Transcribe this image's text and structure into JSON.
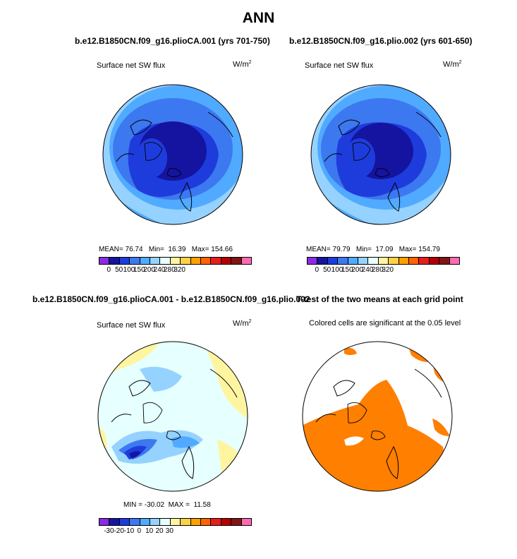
{
  "title": "ANN",
  "panels": [
    {
      "title": "b.e12.B1850CN.f09_g16.plioCA.001 (yrs 701-750)",
      "left_label": "Surface net SW flux",
      "units": "W/m",
      "units_exp": "2",
      "stats": {
        "mean_label": "MEAN=",
        "mean": "76.74",
        "min_label": "Min=",
        "min": "16.39",
        "max_label": "Max=",
        "max": "154.66"
      },
      "colorbar": {
        "colors": [
          "#8a2be2",
          "#1414a0",
          "#1e3cdc",
          "#3c78f0",
          "#50aaff",
          "#96d2ff",
          "#e6ffff",
          "#fff5a0",
          "#ffd246",
          "#ffa000",
          "#ff6400",
          "#e61e1e",
          "#b40000",
          "#821414",
          "#ff69b4"
        ],
        "ticks": [
          "0",
          "50",
          "100",
          "150",
          "200",
          "240",
          "280",
          "320"
        ],
        "tick_positions": [
          1,
          2,
          3,
          4,
          5,
          6,
          7,
          8
        ]
      }
    },
    {
      "title": "b.e12.B1850CN.f09_g16.plio.002 (yrs 601-650)",
      "left_label": "Surface net SW flux",
      "units": "W/m",
      "units_exp": "2",
      "stats": {
        "mean_label": "MEAN=",
        "mean": "79.79",
        "min_label": "Min=",
        "min": "17.09",
        "max_label": "Max=",
        "max": "154.79"
      },
      "colorbar": {
        "colors": [
          "#8a2be2",
          "#1414a0",
          "#1e3cdc",
          "#3c78f0",
          "#50aaff",
          "#96d2ff",
          "#e6ffff",
          "#fff5a0",
          "#ffd246",
          "#ffa000",
          "#ff6400",
          "#e61e1e",
          "#b40000",
          "#821414",
          "#ff69b4"
        ],
        "ticks": [
          "0",
          "50",
          "100",
          "150",
          "200",
          "240",
          "280",
          "320"
        ],
        "tick_positions": [
          1,
          2,
          3,
          4,
          5,
          6,
          7,
          8
        ]
      }
    },
    {
      "title": "b.e12.B1850CN.f09_g16.plioCA.001 - b.e12.B1850CN.f09_g16.plio.002",
      "left_label": "Surface net SW flux",
      "units": "W/m",
      "units_exp": "2",
      "stats": {
        "min_label": "MIN =",
        "min": "-30.02",
        "max_label": "MAX =",
        "max": "11.58"
      },
      "colorbar": {
        "colors": [
          "#8a2be2",
          "#1414a0",
          "#1e3cdc",
          "#3c78f0",
          "#50aaff",
          "#96d2ff",
          "#e6ffff",
          "#fff5a0",
          "#ffd246",
          "#ffa000",
          "#ff6400",
          "#e61e1e",
          "#b40000",
          "#821414",
          "#ff69b4"
        ],
        "ticks": [
          "-30",
          "-20",
          "-10",
          "0",
          "10",
          "20",
          "30"
        ],
        "tick_positions": [
          1,
          2,
          3,
          4,
          5,
          6,
          7
        ]
      }
    },
    {
      "title": "T-test of the two means at each grid point",
      "left_label": "Colored cells are significant at the 0.05 level"
    }
  ],
  "chart_data": [
    {
      "type": "heatmap",
      "projection": "polar-stereographic",
      "title": "b.e12.B1850CN.f09_g16.plioCA.001 (yrs 701-750)",
      "variable": "Surface net SW flux",
      "units": "W/m2",
      "mean": 76.74,
      "min": 16.39,
      "max": 154.66,
      "levels": [
        0,
        50,
        100,
        150,
        200,
        240,
        280,
        320
      ]
    },
    {
      "type": "heatmap",
      "projection": "polar-stereographic",
      "title": "b.e12.B1850CN.f09_g16.plio.002 (yrs 601-650)",
      "variable": "Surface net SW flux",
      "units": "W/m2",
      "mean": 79.79,
      "min": 17.09,
      "max": 154.79,
      "levels": [
        0,
        50,
        100,
        150,
        200,
        240,
        280,
        320
      ]
    },
    {
      "type": "heatmap",
      "projection": "polar-stereographic",
      "title": "b.e12.B1850CN.f09_g16.plioCA.001 - b.e12.B1850CN.f09_g16.plio.002",
      "variable": "Surface net SW flux",
      "units": "W/m2",
      "min": -30.02,
      "max": 11.58,
      "levels": [
        -30,
        -20,
        -10,
        0,
        10,
        20,
        30
      ]
    },
    {
      "type": "heatmap",
      "projection": "polar-stereographic",
      "title": "T-test of the two means at each grid point",
      "significance_level": 0.05,
      "significant_color": "#ff7f00"
    }
  ]
}
